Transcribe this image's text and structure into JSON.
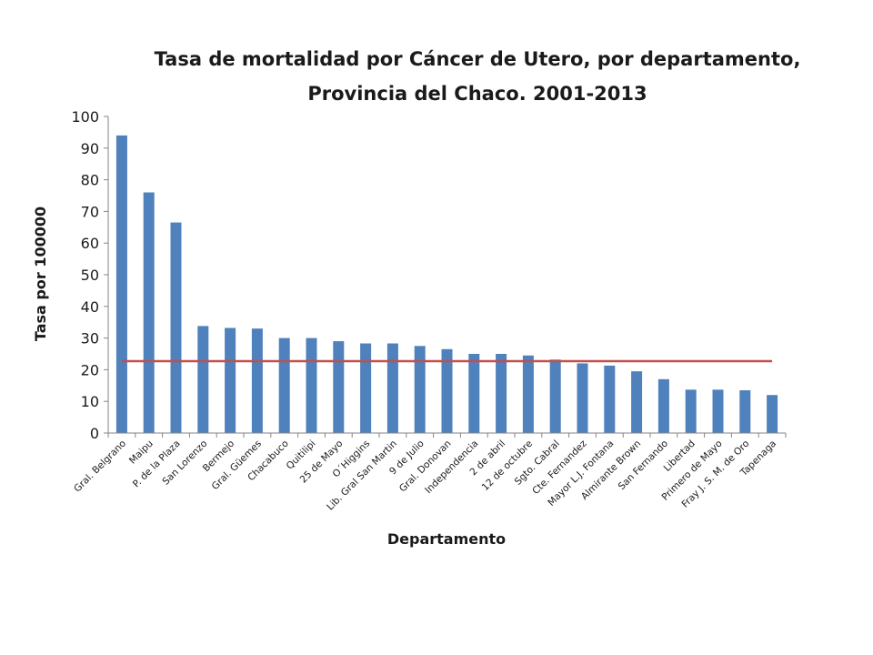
{
  "chart_data": {
    "type": "bar",
    "title_line1": "Tasa de mortalidad por Cáncer de Utero,  por departamento,",
    "title_line2": "Provincia del Chaco. 2001-2013",
    "xlabel": "Departamento",
    "ylabel": "Tasa por 100000",
    "ylim": [
      0,
      100
    ],
    "yticks": [
      0,
      10,
      20,
      30,
      40,
      50,
      60,
      70,
      80,
      90,
      100
    ],
    "grid": false,
    "categories": [
      "Gral. Belgrano",
      "Maipu",
      "P. de la Plaza",
      "San Lorenzo",
      "Bermejo",
      "Gral. Güemes",
      "Chacabuco",
      "Quitilipi",
      "25 de Mayo",
      "O´Higgins",
      "Lib. Gral San Martin",
      "9 de Julio",
      "Gral. Donovan",
      "Independencia",
      "2 de abril",
      "12 de octubre",
      "Sgto. Cabral",
      "Cte. Fernandez",
      "Mayor L.J. Fontana",
      "Almirante Brown",
      "San Fernando",
      "Libertad",
      "Primero de Mayo",
      "Fray J. S. M. de Oro",
      "Tapenaga"
    ],
    "series": [
      {
        "type": "bar",
        "values": [
          94,
          76,
          66.5,
          33.8,
          33.2,
          33,
          30,
          30,
          29,
          28.3,
          28.3,
          27.5,
          26.5,
          25,
          25,
          24.5,
          23.2,
          22,
          21.3,
          19.5,
          17,
          13.7,
          13.7,
          13.5,
          12
        ],
        "color": "#4f81bd"
      },
      {
        "type": "line",
        "values": [
          22.7,
          22.7,
          22.7,
          22.7,
          22.7,
          22.7,
          22.7,
          22.7,
          22.7,
          22.7,
          22.7,
          22.7,
          22.7,
          22.7,
          22.7,
          22.7,
          22.7,
          22.7,
          22.7,
          22.7,
          22.7,
          22.7,
          22.7,
          22.7,
          22.7
        ],
        "color": "#c0504d"
      }
    ]
  }
}
